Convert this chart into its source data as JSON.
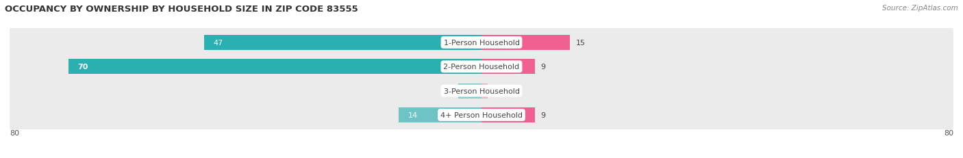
{
  "title": "OCCUPANCY BY OWNERSHIP BY HOUSEHOLD SIZE IN ZIP CODE 83555",
  "source": "Source: ZipAtlas.com",
  "categories": [
    "1-Person Household",
    "2-Person Household",
    "3-Person Household",
    "4+ Person Household"
  ],
  "owner_values": [
    47,
    70,
    4,
    14
  ],
  "renter_values": [
    15,
    9,
    1,
    9
  ],
  "owner_colors": [
    "#2ab0b0",
    "#2ab0b0",
    "#80cece",
    "#6ec4c4"
  ],
  "renter_colors": [
    "#f06090",
    "#f06090",
    "#f4b0c8",
    "#f06090"
  ],
  "axis_max": 80,
  "title_fontsize": 9.5,
  "source_fontsize": 7.5,
  "cat_label_fontsize": 8,
  "value_fontsize": 8,
  "legend_fontsize": 8,
  "background_color": "#ffffff",
  "row_bg_color": "#ebebeb",
  "row_sep_color": "#cccccc",
  "label_color_inside": "#ffffff",
  "label_color_outside": "#444444",
  "value_color": "#444444"
}
